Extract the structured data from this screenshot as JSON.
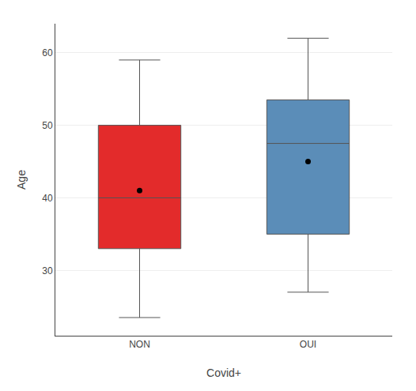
{
  "chart_data": {
    "type": "box",
    "xlabel": "Covid+",
    "ylabel": "Age",
    "categories": [
      "NON",
      "OUI"
    ],
    "colors": [
      "#e32b2b",
      "#5b8db8"
    ],
    "whisker_low": [
      23.5,
      27.0
    ],
    "q1": [
      33.0,
      35.0
    ],
    "median": [
      40.0,
      47.5
    ],
    "q3": [
      50.0,
      53.5
    ],
    "whisker_high": [
      59.0,
      62.0
    ],
    "mean": [
      41.0,
      45.0
    ],
    "ylim": [
      21,
      64
    ],
    "yticks": [
      30,
      40,
      50,
      60
    ],
    "grid": true
  }
}
